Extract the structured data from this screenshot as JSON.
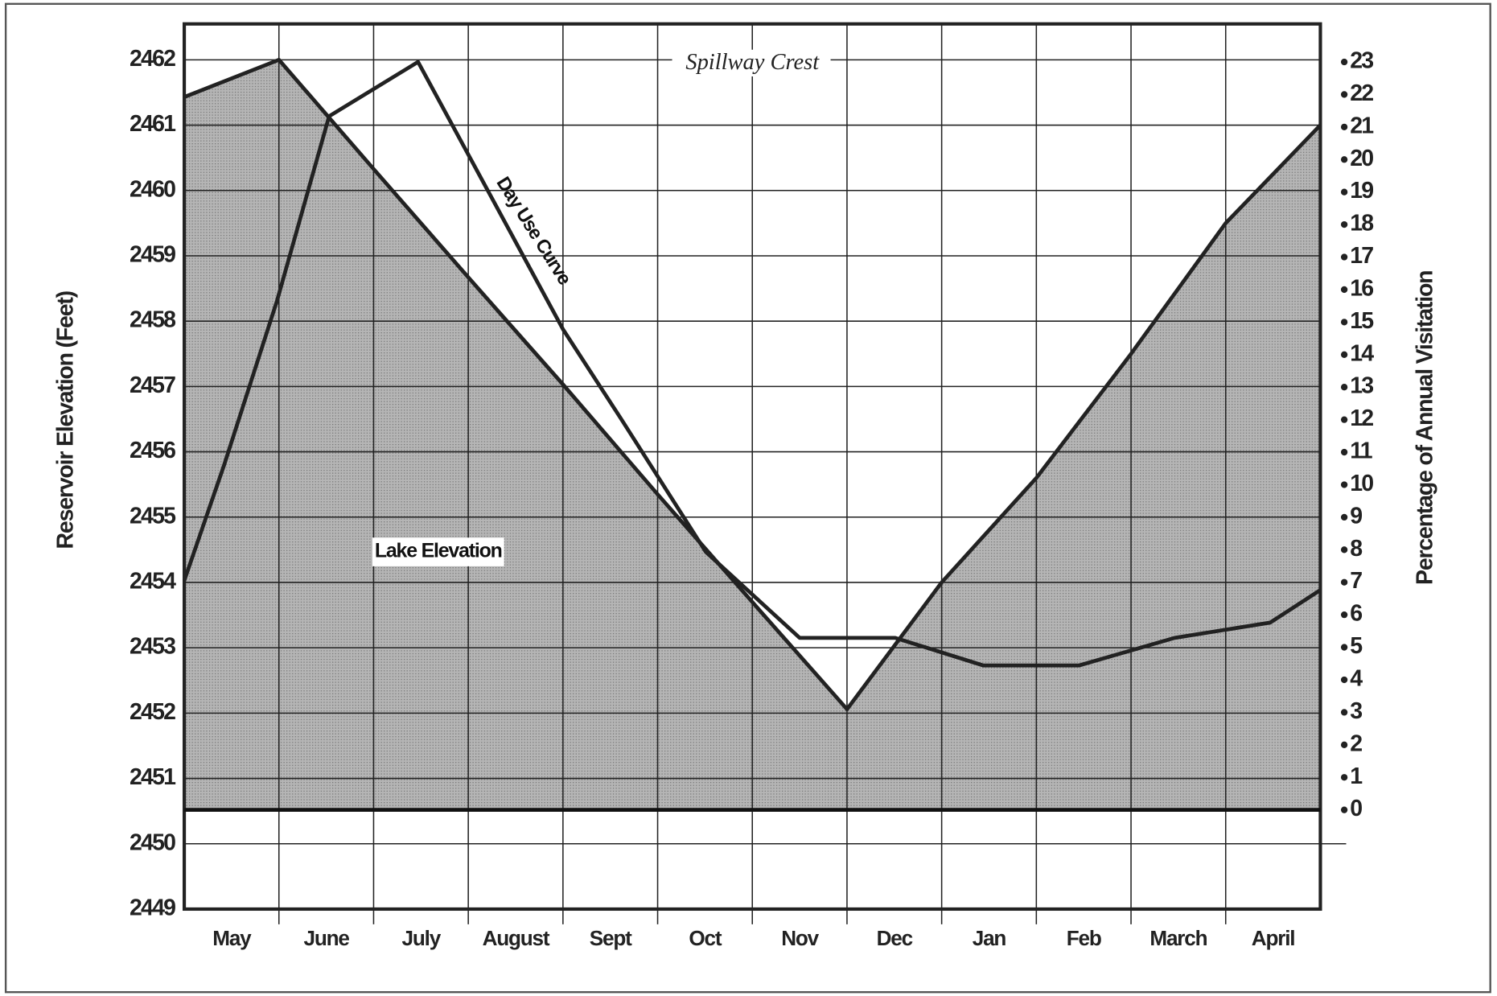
{
  "chart_data": {
    "type": "line",
    "categories": [
      "May",
      "June",
      "July",
      "August",
      "Sept",
      "Oct",
      "Nov",
      "Dec",
      "Jan",
      "Feb",
      "March",
      "April"
    ],
    "xlim": [
      0,
      12
    ],
    "ylabel": "Reservoir Elevation (Feet)",
    "y2label": "Percentage of Annual Visitation",
    "ylim": [
      2449,
      2462.55
    ],
    "yticks": [
      2449,
      2450,
      2451,
      2452,
      2453,
      2454,
      2455,
      2456,
      2457,
      2458,
      2459,
      2460,
      2461,
      2462
    ],
    "y2lim": [
      -3.05,
      24.17
    ],
    "y2ticks": [
      0,
      1,
      2,
      3,
      4,
      5,
      6,
      7,
      8,
      9,
      10,
      11,
      12,
      13,
      14,
      15,
      16,
      17,
      18,
      19,
      20,
      21,
      22,
      23
    ],
    "grid": true,
    "series": [
      {
        "name": "Lake Elevation",
        "kind": "area",
        "color": "#a6a6a6",
        "x": [
          0,
          1,
          2,
          3,
          4,
          5,
          6,
          7,
          8,
          9,
          10,
          11,
          12
        ],
        "values": [
          2461.43,
          2462,
          2460.33,
          2458.67,
          2457.03,
          2455.35,
          2453.7,
          2452.06,
          2454.0,
          2455.6,
          2457.5,
          2459.5,
          2461.0
        ]
      },
      {
        "name": "Day Use Curve",
        "kind": "line",
        "axis": "y2",
        "color": "#222222",
        "x": [
          0,
          0.42,
          0.98,
          1.53,
          2.47,
          4.0,
          4.61,
          5.51,
          6.5,
          7.51,
          8.44,
          9.45,
          10.46,
          11.47,
          12
        ],
        "values": [
          7.05,
          10.6,
          15.66,
          21.33,
          23,
          14.78,
          12.04,
          7.93,
          5.29,
          5.29,
          4.44,
          4.44,
          5.29,
          5.76,
          6.76
        ]
      }
    ],
    "annotations": [
      "Spillway Crest",
      "Day Use Curve",
      "Lake Elevation"
    ]
  }
}
